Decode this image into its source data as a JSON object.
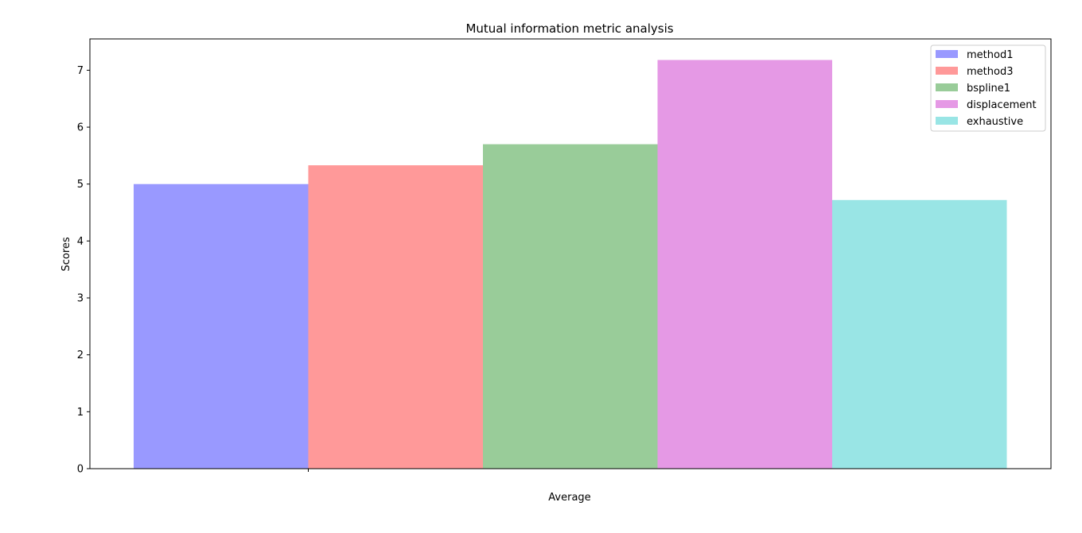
{
  "chart_data": {
    "type": "bar",
    "title": "Mutual information metric analysis",
    "xlabel": "Average",
    "ylabel": "Scores",
    "categories": [
      "Average"
    ],
    "ylim": [
      0,
      7.55
    ],
    "yticks": [
      0,
      1,
      2,
      3,
      4,
      5,
      6,
      7
    ],
    "grid": false,
    "legend_position": "top-right",
    "series": [
      {
        "name": "method1",
        "values": [
          5.0
        ],
        "color": "#9999ff"
      },
      {
        "name": "method3",
        "values": [
          5.33
        ],
        "color": "#ff9999"
      },
      {
        "name": "bspline1",
        "values": [
          5.7
        ],
        "color": "#99cc99"
      },
      {
        "name": "displacement",
        "values": [
          7.18
        ],
        "color": "#e599e5"
      },
      {
        "name": "exhaustive",
        "values": [
          4.72
        ],
        "color": "#99e5e5"
      }
    ]
  }
}
